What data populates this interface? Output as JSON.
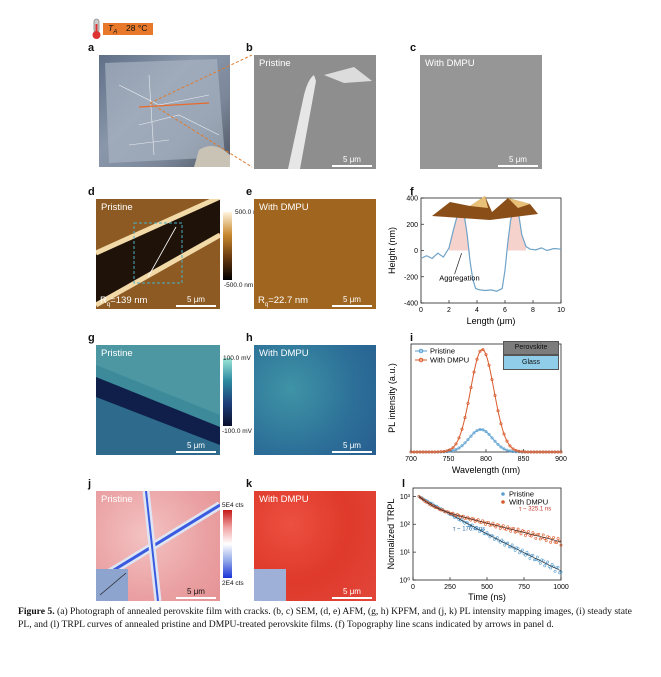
{
  "thermometer": {
    "label_sub": "A",
    "label_main": "T",
    "value": "28 °C"
  },
  "panels": {
    "a": {
      "letter": "a"
    },
    "b": {
      "letter": "b",
      "tag": "Pristine",
      "scale": "5 μm"
    },
    "c": {
      "letter": "c",
      "tag": "With DMPU",
      "scale": "5 μm"
    },
    "d": {
      "letter": "d",
      "tag": "Pristine",
      "rq_prefix": "R",
      "rq_sub": "q",
      "rq_value": "=139 nm",
      "scale": "5 μm",
      "cbar_top": "500.0 nm",
      "cbar_bottom": "-500.0 nm"
    },
    "e": {
      "letter": "e",
      "tag": "With DMPU",
      "rq_prefix": "R",
      "rq_sub": "q",
      "rq_value": "=22.7 nm",
      "scale": "5 μm"
    },
    "g": {
      "letter": "g",
      "tag": "Pristine",
      "scale": "5 μm",
      "cbar_top": "100.0 mV",
      "cbar_bottom": "-100.0 mV"
    },
    "h": {
      "letter": "h",
      "tag": "With DMPU",
      "scale": "5 μm"
    },
    "j": {
      "letter": "j",
      "tag": "Pristine",
      "scale": "5 μm",
      "cbar_top": "5E4 cts",
      "cbar_bottom": "2E4 cts"
    },
    "k": {
      "letter": "k",
      "tag": "With DMPU",
      "scale": "5 μm"
    },
    "f": {
      "letter": "f",
      "annotation": "Aggregation"
    },
    "i": {
      "letter": "i",
      "inset_top": "Perovskite",
      "inset_bottom": "Glass"
    },
    "l": {
      "letter": "l",
      "tau1": "τ ~ 325.1 ns",
      "tau2": "τ ~ 176.4 ns"
    }
  },
  "chart_data": [
    {
      "id": "f",
      "type": "line",
      "xlabel": "Length (μm)",
      "ylabel": "Height (nm)",
      "xlim": [
        0,
        10
      ],
      "ylim": [
        -400,
        400
      ],
      "xticks": [
        0,
        2,
        4,
        6,
        8,
        10
      ],
      "yticks": [
        -400,
        -200,
        0,
        200,
        400
      ],
      "color": "#6fa3c8",
      "x": [
        0,
        0.4,
        0.8,
        1.2,
        1.6,
        2.0,
        2.3,
        2.6,
        2.9,
        3.1,
        3.3,
        3.5,
        3.7,
        3.9,
        4.2,
        4.6,
        5.0,
        5.4,
        5.8,
        6.0,
        6.2,
        6.4,
        6.6,
        6.8,
        7.0,
        7.2,
        7.5,
        7.8,
        8.2,
        8.6,
        9.0,
        9.5,
        10
      ],
      "y": [
        -60,
        -40,
        -60,
        -20,
        -50,
        20,
        150,
        270,
        300,
        260,
        120,
        -80,
        -220,
        -290,
        -300,
        -305,
        -300,
        -310,
        -290,
        -150,
        60,
        230,
        310,
        320,
        260,
        120,
        30,
        10,
        5,
        20,
        0,
        15,
        10
      ]
    },
    {
      "id": "i",
      "type": "line",
      "xlabel": "Wavelength (nm)",
      "ylabel": "PL intensity (a.u.)",
      "xlim": [
        700,
        900
      ],
      "xticks": [
        700,
        750,
        800,
        850,
        900
      ],
      "legend": "top-left",
      "series": [
        {
          "name": "Pristine",
          "color": "#5aa0d0",
          "peak_x": 793,
          "peak": 0.22,
          "width": 22
        },
        {
          "name": "With DMPU",
          "color": "#d95a2b",
          "peak_x": 795,
          "peak": 1.0,
          "width": 22
        }
      ]
    },
    {
      "id": "l",
      "type": "scatter",
      "xlabel": "Time (ns)",
      "ylabel": "Normalized TRPL",
      "xlim": [
        0,
        1000
      ],
      "ylog": true,
      "ylim_exp": [
        0,
        3
      ],
      "ytick_labels": [
        "10⁰",
        "10¹",
        "10²",
        "10³"
      ],
      "xticks": [
        0,
        250,
        500,
        750,
        1000
      ],
      "legend": "top-right",
      "series": [
        {
          "name": "Pristine",
          "color": "#5aa0d0",
          "tau": 176.4,
          "fast": 120
        },
        {
          "name": "With DMPU",
          "color": "#d95a2b",
          "tau": 325.1,
          "fast": 60
        }
      ]
    }
  ],
  "caption": {
    "label": "Figure 5.",
    "text": " (a) Photograph of annealed perovskite film with cracks. (b, c) SEM, (d, e) AFM, (g, h) KPFM, and (j, k) PL intensity mapping images, (i) steady state PL, and (l) TRPL curves of annealed pristine and DMPU-treated perovskite films. (f) Topography line scans indicated by arrows in panel d."
  }
}
